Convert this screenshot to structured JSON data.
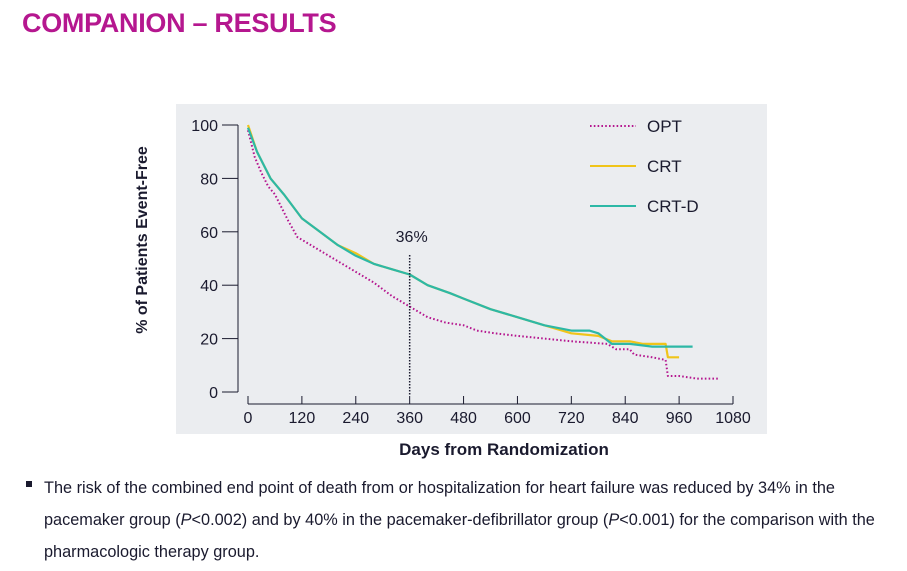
{
  "title": "COMPANION – RESULTS",
  "chart_data": {
    "type": "line",
    "title": "",
    "xlabel": "Days from Randomization",
    "ylabel": "% of Patients Event-Free",
    "xlim": [
      0,
      1080
    ],
    "ylim": [
      0,
      100
    ],
    "x_ticks": [
      "0",
      "120",
      "240",
      "360",
      "480",
      "600",
      "720",
      "840",
      "960",
      "1080"
    ],
    "y_ticks": [
      "0",
      "20",
      "40",
      "60",
      "80",
      "100"
    ],
    "legend_position": "top-right",
    "annotation": {
      "label": "36%",
      "x": 360
    },
    "series": [
      {
        "name": "OPT",
        "color": "#b5178f",
        "style": "dotted",
        "points": [
          [
            0,
            98
          ],
          [
            15,
            88
          ],
          [
            30,
            82
          ],
          [
            45,
            77
          ],
          [
            60,
            74
          ],
          [
            90,
            64
          ],
          [
            110,
            58
          ],
          [
            160,
            53
          ],
          [
            200,
            49
          ],
          [
            240,
            45
          ],
          [
            280,
            41
          ],
          [
            320,
            36
          ],
          [
            360,
            32
          ],
          [
            400,
            28
          ],
          [
            440,
            26
          ],
          [
            480,
            25
          ],
          [
            510,
            23
          ],
          [
            550,
            22
          ],
          [
            600,
            21
          ],
          [
            660,
            20
          ],
          [
            720,
            19
          ],
          [
            800,
            18
          ],
          [
            820,
            16
          ],
          [
            850,
            16
          ],
          [
            860,
            14
          ],
          [
            900,
            13
          ],
          [
            930,
            12
          ],
          [
            935,
            6
          ],
          [
            960,
            6
          ],
          [
            1000,
            5
          ],
          [
            1050,
            5
          ]
        ]
      },
      {
        "name": "CRT",
        "color": "#f0c419",
        "style": "solid",
        "points": [
          [
            0,
            100
          ],
          [
            20,
            90
          ],
          [
            50,
            80
          ],
          [
            80,
            74
          ],
          [
            120,
            65
          ],
          [
            160,
            60
          ],
          [
            200,
            55
          ],
          [
            240,
            52
          ],
          [
            280,
            48
          ],
          [
            320,
            46
          ],
          [
            360,
            44
          ],
          [
            400,
            40
          ],
          [
            450,
            37
          ],
          [
            480,
            35
          ],
          [
            540,
            31
          ],
          [
            600,
            28
          ],
          [
            660,
            25
          ],
          [
            720,
            22
          ],
          [
            780,
            21
          ],
          [
            810,
            19
          ],
          [
            850,
            19
          ],
          [
            880,
            18
          ],
          [
            930,
            18
          ],
          [
            935,
            13
          ],
          [
            960,
            13
          ]
        ]
      },
      {
        "name": "CRT-D",
        "color": "#2db8a6",
        "style": "solid",
        "points": [
          [
            0,
            99
          ],
          [
            20,
            90
          ],
          [
            50,
            80
          ],
          [
            80,
            74
          ],
          [
            120,
            65
          ],
          [
            160,
            60
          ],
          [
            200,
            55
          ],
          [
            240,
            51
          ],
          [
            280,
            48
          ],
          [
            320,
            46
          ],
          [
            360,
            44
          ],
          [
            400,
            40
          ],
          [
            450,
            37
          ],
          [
            480,
            35
          ],
          [
            540,
            31
          ],
          [
            600,
            28
          ],
          [
            660,
            25
          ],
          [
            720,
            23
          ],
          [
            760,
            23
          ],
          [
            780,
            22
          ],
          [
            810,
            18
          ],
          [
            850,
            18
          ],
          [
            900,
            17
          ],
          [
            930,
            17
          ],
          [
            990,
            17
          ]
        ]
      }
    ]
  },
  "note": {
    "part1": "The risk of the combined end point of death from or hospitalization for heart failure was reduced by 34% in the pacemaker group (",
    "p_symbol_1": "P",
    "part2": "<0.002) and by 40% in the pacemaker-defibrillator group (",
    "p_symbol_2": "P",
    "part3": "<0.001) for the comparison with the pharmacologic therapy group."
  }
}
